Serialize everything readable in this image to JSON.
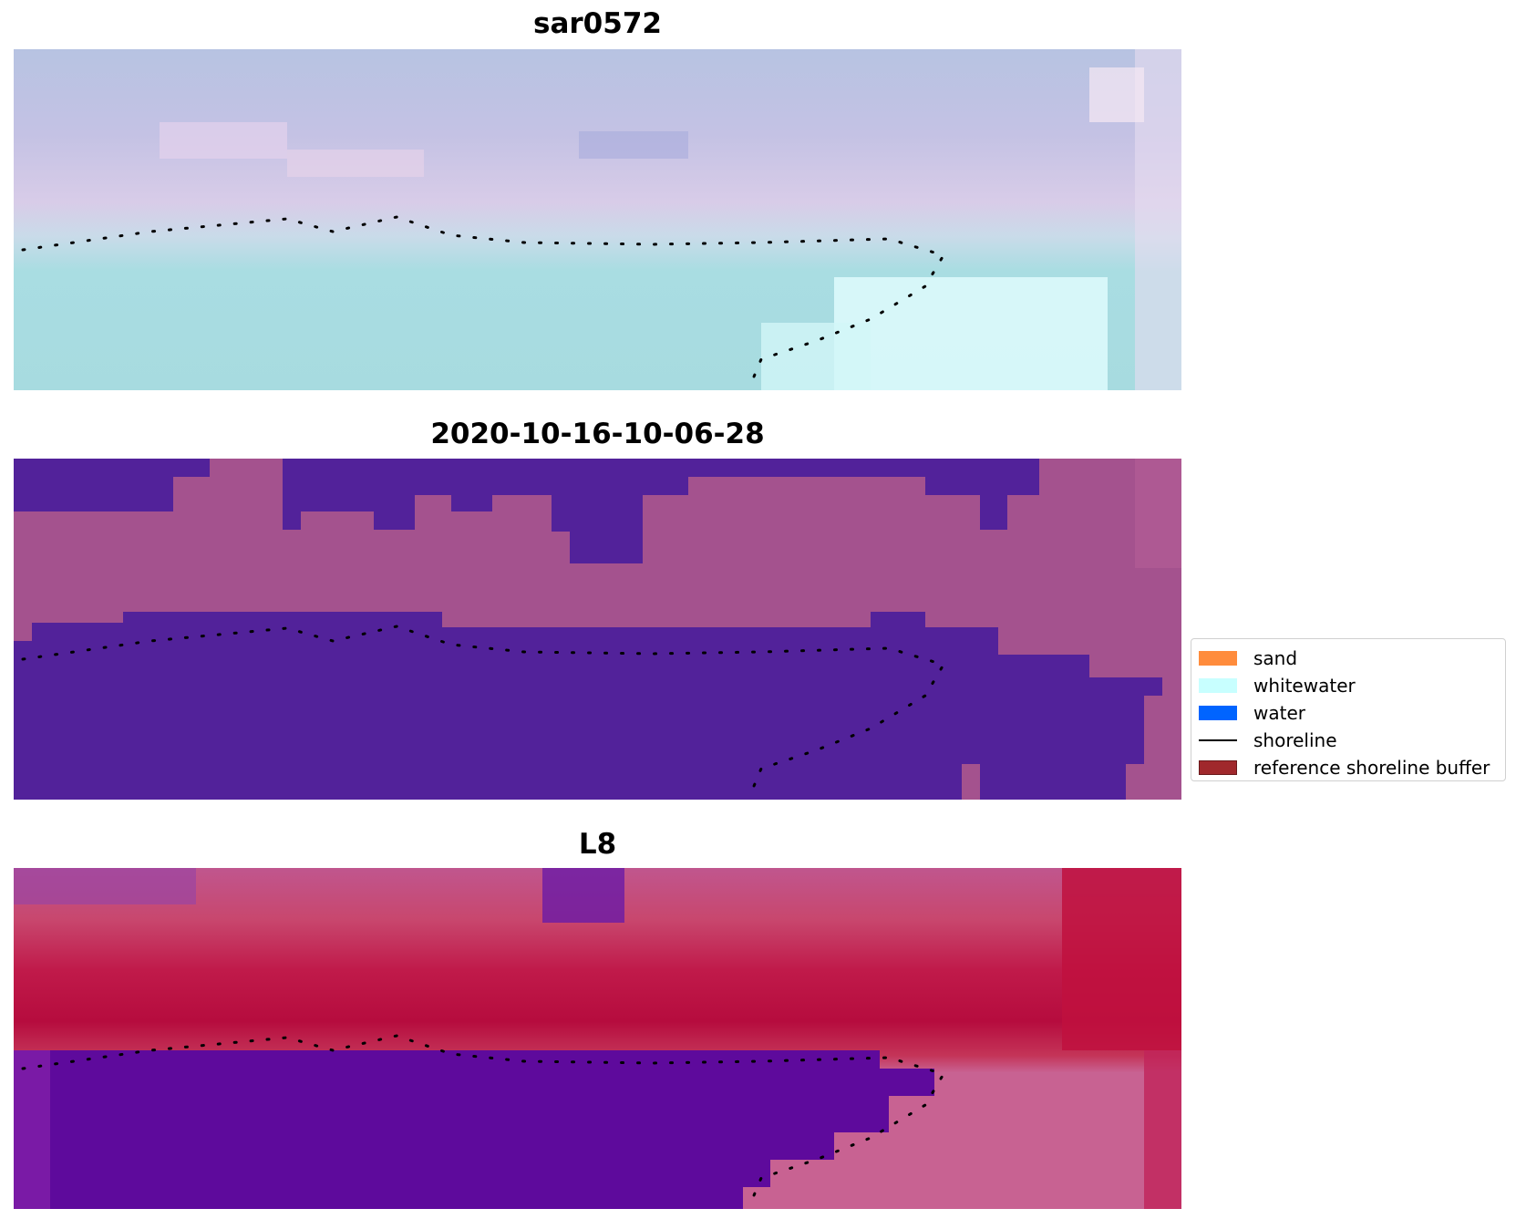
{
  "panels": [
    {
      "title": "sar0572",
      "kind": "rgb-image"
    },
    {
      "title": "2020-10-16-10-06-28",
      "kind": "classified-image"
    },
    {
      "title": "L8",
      "kind": "index-image"
    }
  ],
  "legend": {
    "items": [
      {
        "label": "sand",
        "color": "#ff8c3c",
        "style": "patch"
      },
      {
        "label": "whitewater",
        "color": "#c8ffff",
        "style": "patch"
      },
      {
        "label": "water",
        "color": "#0064ff",
        "style": "patch"
      },
      {
        "label": "shoreline",
        "color": "#000000",
        "style": "line"
      },
      {
        "label": "reference shoreline buffer",
        "color": "#a0282c",
        "style": "patch"
      }
    ]
  },
  "colors": {
    "rgb_sky": "#bdbfe0",
    "rgb_lavender": "#d6c6e6",
    "rgb_water": "#a7dbe0",
    "rgb_whitewater": "#dcfafc",
    "class_water": "#52229a",
    "class_land": "#a4528e",
    "index_crimson": "#c0174b",
    "index_pink": "#c85a8a",
    "index_purple": "#5e0a9c",
    "shoreline_dots": "#000000"
  }
}
